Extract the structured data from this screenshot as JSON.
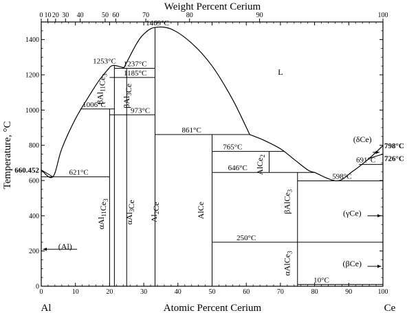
{
  "chart_data": {
    "type": "phase-diagram",
    "title": "Weight Percent Cerium",
    "xlabel": "Atomic Percent Cerium",
    "ylabel": "Temperature, °C",
    "xlim": [
      0,
      100
    ],
    "ylim": [
      0,
      1500
    ],
    "x_ticks": [
      "0",
      "10",
      "20",
      "30",
      "40",
      "50",
      "60",
      "70",
      "80",
      "90",
      "100"
    ],
    "y_ticks": [
      "0",
      "200",
      "400",
      "600",
      "800",
      "1000",
      "1200",
      "1400"
    ],
    "top_ticks": [
      "0",
      "10",
      "20",
      "30",
      "40",
      "50",
      "60",
      "70",
      "80",
      "90",
      "100"
    ],
    "top_ticks_at": [
      0,
      1.9,
      4.2,
      7.1,
      11.4,
      18.7,
      21.8,
      30.6,
      43.4,
      63.9,
      100
    ],
    "end_labels": {
      "left": "Al",
      "right": "Ce"
    },
    "liquidus": [
      [
        [
          0,
          660
        ],
        [
          3.4,
          621
        ],
        [
          6,
          780
        ],
        [
          10,
          950
        ],
        [
          14,
          1080
        ],
        [
          17,
          1170
        ],
        [
          19.5,
          1230
        ],
        [
          20.5,
          1250
        ],
        [
          21.4,
          1253
        ],
        [
          22.5,
          1249
        ],
        [
          24.2,
          1240
        ]
      ],
      [
        [
          24.2,
          1240
        ],
        [
          28,
          1380
        ],
        [
          30.5,
          1440
        ],
        [
          33.3,
          1469
        ],
        [
          38,
          1460
        ],
        [
          44,
          1380
        ],
        [
          50,
          1250
        ],
        [
          56,
          1060
        ],
        [
          61,
          861
        ]
      ],
      [
        [
          61,
          861
        ],
        [
          65,
          830
        ],
        [
          70,
          780
        ],
        [
          74,
          720
        ],
        [
          78,
          660
        ],
        [
          80,
          646
        ]
      ],
      [
        [
          80,
          646
        ],
        [
          86.5,
          598
        ],
        [
          91,
          650
        ],
        [
          96,
          726
        ],
        [
          100,
          798
        ]
      ]
    ],
    "lines": [
      {
        "from": [
          0,
          621
        ],
        "to": [
          20,
          621
        ]
      },
      {
        "from": [
          0,
          660
        ],
        "to": [
          3.4,
          621
        ]
      },
      {
        "from": [
          11.4,
          1006
        ],
        "to": [
          21.4,
          1006
        ]
      },
      {
        "from": [
          20,
          973
        ],
        "to": [
          33.3,
          973
        ]
      },
      {
        "from": [
          20,
          1185
        ],
        "to": [
          33.3,
          1185
        ]
      },
      {
        "from": [
          21.4,
          1237
        ],
        "to": [
          33.3,
          1237
        ]
      },
      {
        "from": [
          33.3,
          861
        ],
        "to": [
          61,
          861
        ]
      },
      {
        "from": [
          50,
          765
        ],
        "to": [
          71,
          765
        ]
      },
      {
        "from": [
          50,
          646
        ],
        "to": [
          80,
          646
        ]
      },
      {
        "from": [
          75,
          598
        ],
        "to": [
          100,
          598
        ]
      },
      {
        "from": [
          50,
          250
        ],
        "to": [
          100,
          250
        ]
      },
      {
        "from": [
          75,
          10
        ],
        "to": [
          100,
          10
        ]
      },
      {
        "from": [
          93,
          691
        ],
        "to": [
          100,
          691
        ]
      },
      {
        "from": [
          20,
          0
        ],
        "to": [
          20,
          1006
        ]
      },
      {
        "from": [
          21.4,
          0
        ],
        "to": [
          21.4,
          1253
        ]
      },
      {
        "from": [
          25,
          0
        ],
        "to": [
          25,
          1237
        ]
      },
      {
        "from": [
          33.3,
          0
        ],
        "to": [
          33.3,
          1469
        ]
      },
      {
        "from": [
          50,
          0
        ],
        "to": [
          50,
          861
        ]
      },
      {
        "from": [
          66.7,
          646
        ],
        "to": [
          66.7,
          765
        ]
      },
      {
        "from": [
          75,
          0
        ],
        "to": [
          75,
          646
        ]
      },
      {
        "from": [
          96,
          726
        ],
        "to": [
          100,
          750
        ]
      }
    ],
    "temperature_labels": [
      {
        "text": "660.452",
        "x": 0,
        "y": 660,
        "bold": true
      },
      {
        "text": "621°C",
        "x": 11,
        "y": 621
      },
      {
        "text": "1006°C",
        "x": 15.5,
        "y": 1006
      },
      {
        "text": "1253°C",
        "x": 18.5,
        "y": 1253
      },
      {
        "text": "1237°C",
        "x": 27.5,
        "y": 1237
      },
      {
        "text": "1185°C",
        "x": 27.5,
        "y": 1185
      },
      {
        "text": "973°C",
        "x": 29,
        "y": 973
      },
      {
        "text": "1469°C",
        "x": 34,
        "y": 1469
      },
      {
        "text": "861°C",
        "x": 44,
        "y": 861
      },
      {
        "text": "765°C",
        "x": 56,
        "y": 765
      },
      {
        "text": "646°C",
        "x": 57.5,
        "y": 646
      },
      {
        "text": "598°C",
        "x": 88,
        "y": 598
      },
      {
        "text": "691°C",
        "x": 95,
        "y": 691
      },
      {
        "text": "798°C",
        "x": 100,
        "y": 798,
        "bold": true
      },
      {
        "text": "726°C",
        "x": 100,
        "y": 726,
        "bold": true
      },
      {
        "text": "250°C",
        "x": 60,
        "y": 250
      },
      {
        "text": "10°C",
        "x": 82,
        "y": 10
      }
    ],
    "phase_labels": [
      {
        "text": "L",
        "x": 70,
        "y": 1200
      },
      {
        "text": "(δCe)",
        "x": 94,
        "y": 818
      },
      {
        "text": "(γCe)",
        "x": 91,
        "y": 400
      },
      {
        "text": "(βCe)",
        "x": 91,
        "y": 113
      },
      {
        "text": "(Al)",
        "x": 7,
        "y": 210
      },
      {
        "text": "βAl11Ce3",
        "x": 18,
        "y": 1120,
        "vertical": true
      },
      {
        "text": "βAl3Ce",
        "x": 25.8,
        "y": 1080,
        "vertical": true
      },
      {
        "text": "αAl11Ce3",
        "x": 18.3,
        "y": 410,
        "vertical": true
      },
      {
        "text": "αAl3Ce",
        "x": 26.6,
        "y": 420,
        "vertical": true
      },
      {
        "text": "Al2Ce",
        "x": 33.8,
        "y": 420,
        "vertical": true
      },
      {
        "text": "AlCe",
        "x": 47.5,
        "y": 430,
        "vertical": true
      },
      {
        "text": "AlCe2",
        "x": 64.8,
        "y": 690,
        "vertical": true
      },
      {
        "text": "βAlCe3",
        "x": 72.7,
        "y": 480,
        "vertical": true
      },
      {
        "text": "αAlCe3",
        "x": 72.7,
        "y": 130,
        "vertical": true
      }
    ],
    "arrows": [
      {
        "from": [
          10.5,
          210
        ],
        "to": [
          0.5,
          210
        ]
      },
      {
        "from": [
          95.5,
          400
        ],
        "to": [
          99.5,
          400
        ]
      },
      {
        "from": [
          95.5,
          113
        ],
        "to": [
          99.5,
          113
        ]
      },
      {
        "from": [
          97,
          760
        ],
        "to": [
          99,
          760
        ]
      }
    ]
  }
}
